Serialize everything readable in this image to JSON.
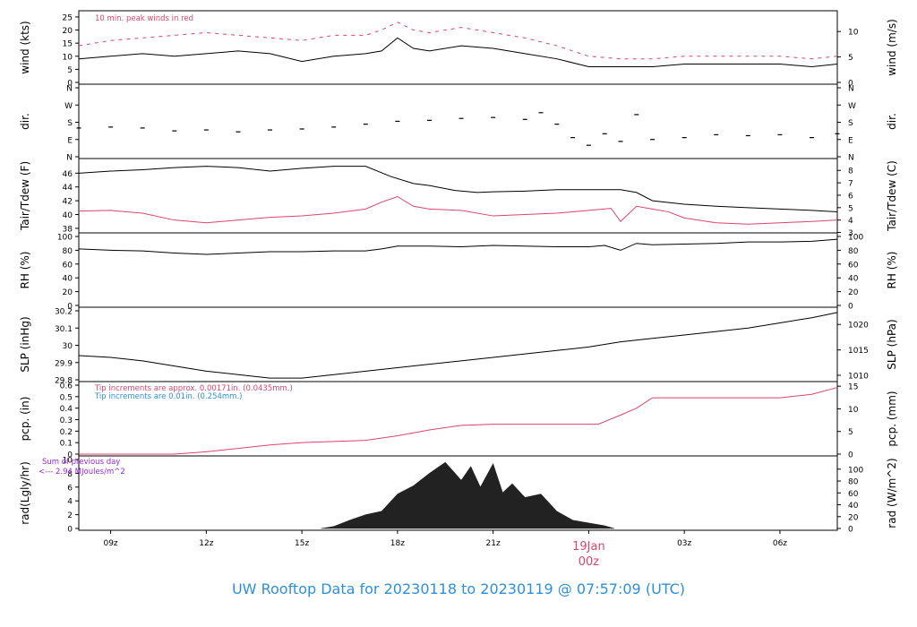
{
  "footer_title": "UW Rooftop Data for 20230118  to  20230119 @ 07:57:09  (UTC)",
  "date_label": "19Jan",
  "date_sublabel": "00z",
  "colors": {
    "primary": "#000000",
    "secondary": "#d9466a",
    "accent_blue": "#2f8fd8",
    "accent_purple": "#9a27d6"
  },
  "chart_data": [
    {
      "id": "wind",
      "type": "line",
      "ylabel": "wind (kts)",
      "ylabel_right": "wind (m/s)",
      "annotations": [
        "10 min. peak winds in red"
      ],
      "ylim": [
        0,
        26
      ],
      "y_ticks": [
        0,
        5,
        10,
        15,
        20,
        25
      ],
      "y_ticks_right": [
        {
          "value": 0,
          "label": "0"
        },
        {
          "value": 9.72,
          "label": "5"
        },
        {
          "value": 19.44,
          "label": "10"
        }
      ],
      "series": [
        {
          "color": "#000000",
          "x": [
            8,
            9,
            10,
            11,
            12,
            13,
            14,
            15,
            16,
            17,
            17.5,
            18,
            18.5,
            19,
            20,
            21,
            22,
            23,
            24,
            25,
            26,
            27,
            28,
            29,
            30,
            31,
            31.8
          ],
          "y": [
            9,
            10,
            11,
            10,
            11,
            12,
            11,
            8,
            10,
            11,
            12,
            17,
            13,
            12,
            14,
            13,
            11,
            9,
            6,
            6,
            6,
            7,
            7,
            7,
            7,
            6,
            7
          ]
        },
        {
          "color": "#d9466a",
          "style": "dashed",
          "x": [
            8,
            9,
            10,
            11,
            12,
            13,
            14,
            15,
            16,
            17,
            17.5,
            18,
            18.5,
            19,
            20,
            21,
            22,
            23,
            24,
            25,
            26,
            27,
            28,
            29,
            30,
            31,
            31.8
          ],
          "y": [
            14,
            16,
            17,
            18,
            19,
            18,
            17,
            16,
            18,
            18,
            20,
            23,
            20,
            19,
            21,
            19,
            17,
            14,
            10,
            9,
            9,
            10,
            10,
            10,
            10,
            9,
            10
          ]
        }
      ]
    },
    {
      "id": "dir",
      "type": "scatter",
      "ylabel": "dir.",
      "ylabel_right": "dir.",
      "ylim": [
        0,
        360
      ],
      "y_ticks": [
        {
          "value": 0,
          "label": "N"
        },
        {
          "value": 90,
          "label": "E"
        },
        {
          "value": 180,
          "label": "S"
        },
        {
          "value": 270,
          "label": "W"
        },
        {
          "value": 360,
          "label": "N"
        }
      ],
      "series": [
        {
          "color": "#000000",
          "x": [
            8,
            9,
            10,
            11,
            12,
            13,
            14,
            15,
            16,
            17,
            18,
            19,
            20,
            21,
            22,
            22.5,
            23,
            23.5,
            24,
            24.5,
            25,
            25.5,
            26,
            27,
            28,
            29,
            30,
            31,
            31.8
          ],
          "y": [
            150,
            155,
            150,
            135,
            140,
            130,
            140,
            145,
            155,
            170,
            185,
            190,
            200,
            205,
            195,
            230,
            170,
            100,
            60,
            120,
            80,
            220,
            90,
            100,
            115,
            110,
            115,
            100,
            120
          ]
        }
      ]
    },
    {
      "id": "temp",
      "type": "line",
      "ylabel": "Tair/Tdew (F)",
      "ylabel_right": "Tair/Tdew (C)",
      "ylim": [
        37.6,
        47.6
      ],
      "y_ticks": [
        38,
        40,
        42,
        44,
        46
      ],
      "y_ticks_right": [
        {
          "value": 37.4,
          "label": "3"
        },
        {
          "value": 39.2,
          "label": "4"
        },
        {
          "value": 41,
          "label": "5"
        },
        {
          "value": 42.8,
          "label": "6"
        },
        {
          "value": 44.6,
          "label": "7"
        },
        {
          "value": 46.4,
          "label": "8"
        }
      ],
      "series": [
        {
          "name": "Tair",
          "color": "#000000",
          "x": [
            8,
            9,
            10,
            11,
            12,
            13,
            14,
            15,
            16,
            17,
            17.8,
            18.5,
            19,
            19.8,
            20.5,
            21,
            22,
            23,
            24,
            25,
            25.5,
            26,
            27,
            28,
            29,
            30,
            31,
            31.8
          ],
          "y": [
            46,
            46.3,
            46.5,
            46.8,
            47.0,
            46.8,
            46.3,
            46.7,
            47.0,
            47.0,
            45.5,
            44.5,
            44.2,
            43.5,
            43.2,
            43.3,
            43.4,
            43.6,
            43.6,
            43.6,
            43.2,
            42.0,
            41.5,
            41.2,
            41.0,
            40.8,
            40.6,
            40.4
          ]
        },
        {
          "name": "Tdew",
          "color": "#d9466a",
          "x": [
            8,
            9,
            10,
            11,
            12,
            13,
            14,
            15,
            16,
            17,
            17.5,
            18,
            18.5,
            19,
            20,
            21,
            22,
            23,
            24,
            24.7,
            25,
            25.5,
            26,
            26.5,
            27,
            28,
            29,
            30,
            31,
            31.8
          ],
          "y": [
            40.5,
            40.6,
            40.2,
            39.2,
            38.8,
            39.2,
            39.6,
            39.8,
            40.2,
            40.8,
            41.8,
            42.6,
            41.2,
            40.8,
            40.6,
            39.8,
            40.0,
            40.2,
            40.6,
            40.9,
            39.0,
            41.2,
            40.8,
            40.4,
            39.5,
            38.8,
            38.6,
            38.8,
            39.0,
            39.2
          ]
        }
      ]
    },
    {
      "id": "rh",
      "type": "line",
      "ylabel": "RH (%)",
      "ylabel_right": "RH (%)",
      "ylim": [
        0,
        100
      ],
      "y_ticks": [
        0,
        20,
        40,
        60,
        80,
        100
      ],
      "y_ticks_right": [
        {
          "value": 0,
          "label": "0"
        },
        {
          "value": 20,
          "label": "20"
        },
        {
          "value": 40,
          "label": "40"
        },
        {
          "value": 60,
          "label": "60"
        },
        {
          "value": 80,
          "label": "80"
        },
        {
          "value": 100,
          "label": "100"
        }
      ],
      "series": [
        {
          "color": "#000000",
          "x": [
            8,
            9,
            10,
            11,
            12,
            13,
            14,
            15,
            16,
            17,
            17.5,
            18,
            19,
            20,
            21,
            22,
            23,
            24,
            24.5,
            25,
            25.5,
            26,
            27,
            28,
            29,
            30,
            31,
            31.8
          ],
          "y": [
            82,
            80,
            79,
            76,
            74,
            76,
            78,
            78,
            79,
            79,
            82,
            86,
            86,
            85,
            87,
            86,
            85,
            85,
            87,
            80,
            90,
            88,
            89,
            90,
            92,
            92,
            93,
            96
          ]
        }
      ]
    },
    {
      "id": "slp",
      "type": "line",
      "ylabel": "SLP (inHg)",
      "ylabel_right": "SLP (hPa)",
      "ylim": [
        29.8,
        30.2
      ],
      "y_ticks": [
        29.8,
        29.9,
        30.0,
        30.1,
        30.2
      ],
      "y_ticks_right": [
        {
          "value": 29.826,
          "label": "1010"
        },
        {
          "value": 29.973,
          "label": "1015"
        },
        {
          "value": 30.121,
          "label": "1020"
        }
      ],
      "series": [
        {
          "color": "#000000",
          "x": [
            8,
            9,
            10,
            11,
            12,
            13,
            14,
            15,
            16,
            17,
            18,
            19,
            20,
            21,
            22,
            23,
            24,
            25,
            26,
            27,
            28,
            29,
            30,
            31,
            31.8
          ],
          "y": [
            29.94,
            29.93,
            29.91,
            29.88,
            29.85,
            29.83,
            29.81,
            29.81,
            29.83,
            29.85,
            29.87,
            29.89,
            29.91,
            29.93,
            29.95,
            29.97,
            29.99,
            30.02,
            30.04,
            30.06,
            30.08,
            30.1,
            30.13,
            30.16,
            30.19
          ]
        }
      ]
    },
    {
      "id": "pcp",
      "type": "line",
      "ylabel": "pcp. (in)",
      "ylabel_right": "pcp. (mm)",
      "annotations": [
        "Tip increments are approx. 0.00171in. (0.0435mm.)",
        "Tip increments are 0.01in. (0.254mm.)"
      ],
      "ylim": [
        0,
        0.6
      ],
      "y_ticks": [
        0,
        0.1,
        0.2,
        0.3,
        0.4,
        0.5,
        0.6
      ],
      "y_ticks_right": [
        {
          "value": 0,
          "label": "0"
        },
        {
          "value": 0.197,
          "label": "5"
        },
        {
          "value": 0.394,
          "label": "10"
        },
        {
          "value": 0.591,
          "label": "15"
        }
      ],
      "series": [
        {
          "color": "#d9466a",
          "x": [
            8,
            11,
            12,
            13,
            14,
            15,
            16,
            17,
            18,
            19,
            20,
            21,
            22,
            23,
            24,
            24.3,
            25,
            25.5,
            26,
            27,
            28,
            29,
            30,
            31,
            31.8
          ],
          "y": [
            0,
            0,
            0.02,
            0.05,
            0.08,
            0.1,
            0.11,
            0.12,
            0.16,
            0.21,
            0.25,
            0.26,
            0.26,
            0.26,
            0.26,
            0.26,
            0.34,
            0.4,
            0.49,
            0.49,
            0.49,
            0.49,
            0.49,
            0.52,
            0.58
          ]
        }
      ]
    },
    {
      "id": "rad",
      "type": "area",
      "ylabel": "rad(Lgly/hr)",
      "ylabel_right": "rad (W/m^2)",
      "annotations": [
        "Sum of previous day",
        "<--- 2.94 MJoules/m^2"
      ],
      "ylim": [
        0,
        10
      ],
      "y_ticks": [
        0,
        2,
        4,
        6,
        8,
        10
      ],
      "y_ticks_right": [
        {
          "value": 0,
          "label": "0"
        },
        {
          "value": 1.72,
          "label": "20"
        },
        {
          "value": 3.44,
          "label": "40"
        },
        {
          "value": 5.16,
          "label": "60"
        },
        {
          "value": 6.88,
          "label": "80"
        },
        {
          "value": 8.6,
          "label": "100"
        }
      ],
      "series": [
        {
          "color": "#222222",
          "x": [
            15.6,
            16,
            16.5,
            17,
            17.5,
            18,
            18.5,
            19,
            19.5,
            20,
            20.3,
            20.6,
            21,
            21.3,
            21.6,
            22,
            22.5,
            23,
            23.5,
            24,
            24.5,
            24.8
          ],
          "y": [
            0,
            0.3,
            1.2,
            2.0,
            2.5,
            5.0,
            6.2,
            8.0,
            9.6,
            7.0,
            9.0,
            6.0,
            9.4,
            5.2,
            6.5,
            4.5,
            5.0,
            2.5,
            1.2,
            0.8,
            0.4,
            0
          ]
        }
      ]
    }
  ],
  "x_axis": {
    "ticks": [
      {
        "value": 9,
        "label": "09z"
      },
      {
        "value": 12,
        "label": "12z"
      },
      {
        "value": 15,
        "label": "15z"
      },
      {
        "value": 18,
        "label": "18z"
      },
      {
        "value": 21,
        "label": "21z"
      },
      {
        "value": 27,
        "label": "03z"
      },
      {
        "value": 30,
        "label": "06z"
      }
    ],
    "xlim": [
      8.0,
      31.8
    ]
  }
}
